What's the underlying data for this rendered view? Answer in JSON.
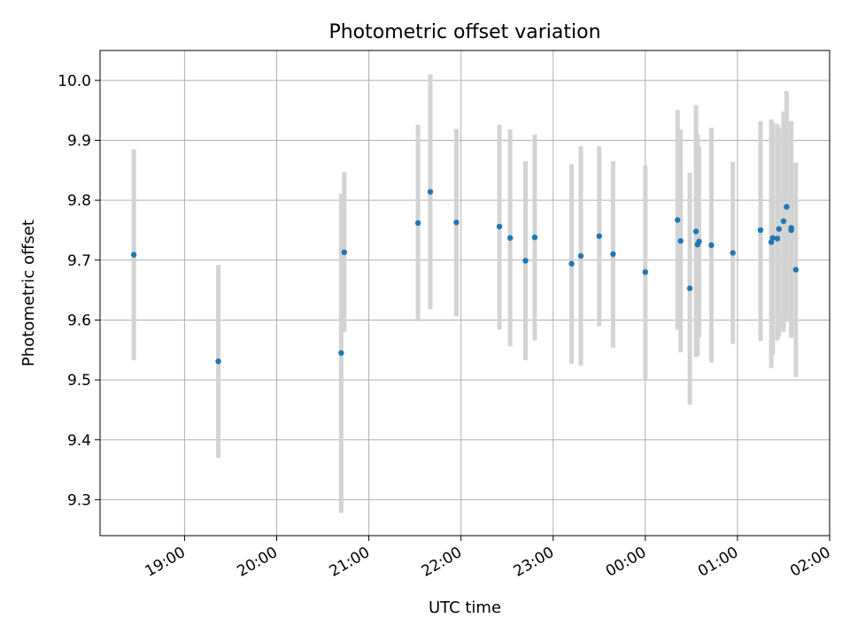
{
  "chart_data": {
    "type": "scatter",
    "title": "Photometric offset variation",
    "xlabel": "UTC time",
    "ylabel": "Photometric offset",
    "xlim": [
      "18:05",
      "02:00"
    ],
    "ylim": [
      9.24,
      10.05
    ],
    "grid": true,
    "x_ticks": [
      "19:00",
      "20:00",
      "21:00",
      "22:00",
      "23:00",
      "00:00",
      "01:00",
      "02:00"
    ],
    "y_ticks": [
      "9.3",
      "9.4",
      "9.5",
      "9.6",
      "9.7",
      "9.8",
      "9.9",
      "10.0"
    ],
    "colors": {
      "point": "#1f77b4",
      "errorbar": "#d3d3d3"
    },
    "points": [
      {
        "t": "18:27",
        "y": 9.709,
        "lo": 9.533,
        "hi": 9.885
      },
      {
        "t": "19:22",
        "y": 9.531,
        "lo": 9.37,
        "hi": 9.692
      },
      {
        "t": "20:42",
        "y": 9.545,
        "lo": 9.278,
        "hi": 9.811
      },
      {
        "t": "20:44",
        "y": 9.713,
        "lo": 9.58,
        "hi": 9.847
      },
      {
        "t": "21:32",
        "y": 9.762,
        "lo": 9.598,
        "hi": 9.926
      },
      {
        "t": "21:40",
        "y": 9.814,
        "lo": 9.618,
        "hi": 10.01
      },
      {
        "t": "21:57",
        "y": 9.763,
        "lo": 9.606,
        "hi": 9.919
      },
      {
        "t": "22:25",
        "y": 9.756,
        "lo": 9.584,
        "hi": 9.926
      },
      {
        "t": "22:32",
        "y": 9.737,
        "lo": 9.556,
        "hi": 9.918
      },
      {
        "t": "22:42",
        "y": 9.699,
        "lo": 9.533,
        "hi": 9.865
      },
      {
        "t": "22:48",
        "y": 9.738,
        "lo": 9.566,
        "hi": 9.91
      },
      {
        "t": "23:12",
        "y": 9.694,
        "lo": 9.527,
        "hi": 9.86
      },
      {
        "t": "23:18",
        "y": 9.707,
        "lo": 9.524,
        "hi": 9.89
      },
      {
        "t": "23:30",
        "y": 9.74,
        "lo": 9.59,
        "hi": 9.89
      },
      {
        "t": "23:39",
        "y": 9.71,
        "lo": 9.554,
        "hi": 9.865
      },
      {
        "t": "00:00",
        "y": 9.68,
        "lo": 9.5,
        "hi": 9.858
      },
      {
        "t": "00:21",
        "y": 9.767,
        "lo": 9.584,
        "hi": 9.951
      },
      {
        "t": "00:23",
        "y": 9.732,
        "lo": 9.546,
        "hi": 9.918
      },
      {
        "t": "00:29",
        "y": 9.653,
        "lo": 9.459,
        "hi": 9.846
      },
      {
        "t": "00:33",
        "y": 9.748,
        "lo": 9.538,
        "hi": 9.959
      },
      {
        "t": "00:34",
        "y": 9.726,
        "lo": 9.54,
        "hi": 9.91
      },
      {
        "t": "00:35",
        "y": 9.731,
        "lo": 9.571,
        "hi": 9.89
      },
      {
        "t": "00:43",
        "y": 9.725,
        "lo": 9.529,
        "hi": 9.921
      },
      {
        "t": "00:57",
        "y": 9.712,
        "lo": 9.56,
        "hi": 9.864
      },
      {
        "t": "01:15",
        "y": 9.75,
        "lo": 9.565,
        "hi": 9.932
      },
      {
        "t": "01:22",
        "y": 9.73,
        "lo": 9.52,
        "hi": 9.935
      },
      {
        "t": "01:23",
        "y": 9.737,
        "lo": 9.542,
        "hi": 9.93
      },
      {
        "t": "01:26",
        "y": 9.736,
        "lo": 9.566,
        "hi": 9.927
      },
      {
        "t": "01:27",
        "y": 9.752,
        "lo": 9.573,
        "hi": 9.921
      },
      {
        "t": "01:30",
        "y": 9.765,
        "lo": 9.58,
        "hi": 9.948
      },
      {
        "t": "01:32",
        "y": 9.789,
        "lo": 9.597,
        "hi": 9.982
      },
      {
        "t": "01:35",
        "y": 9.754,
        "lo": 9.576,
        "hi": 9.932
      },
      {
        "t": "01:35",
        "y": 9.75,
        "lo": 9.57,
        "hi": 9.93
      },
      {
        "t": "01:38",
        "y": 9.684,
        "lo": 9.505,
        "hi": 9.863
      }
    ]
  }
}
